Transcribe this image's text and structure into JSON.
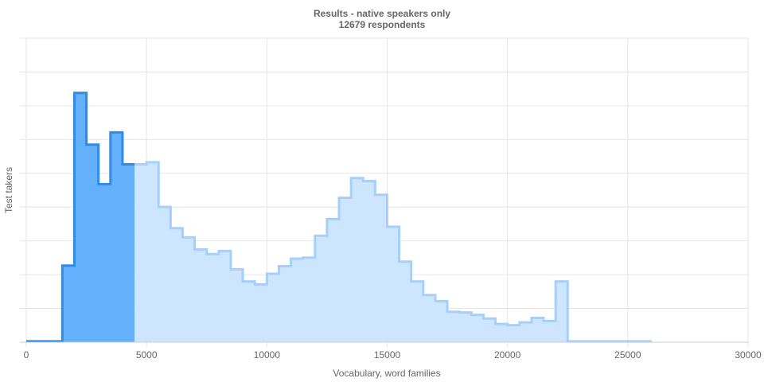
{
  "chart_data": {
    "type": "area",
    "title": [
      "Results - native speakers only",
      "12679 respondents"
    ],
    "xlabel": "Vocabulary, word families",
    "ylabel": "Test takers",
    "xlim": [
      0,
      30000
    ],
    "ylim": [
      0,
      100
    ],
    "grid": true,
    "legend": "none",
    "xticks": [
      0,
      5000,
      10000,
      15000,
      20000,
      25000,
      30000
    ],
    "bin_width": 500,
    "highlight_max_x": 4500,
    "colors": {
      "highlight_fill": "#64b0fc",
      "highlight_stroke": "#2e8ce8",
      "base_fill": "#cde5fe",
      "base_stroke": "#a6d0fa",
      "grid": "#e6e6e6",
      "axis": "#cccccc",
      "text": "#666666"
    },
    "series": [
      {
        "x": [
          250,
          750,
          1250,
          1750,
          2250,
          2750,
          3250,
          3750,
          4250,
          4750,
          5250,
          5750,
          6250,
          6750,
          7250,
          7750,
          8250,
          8750,
          9250,
          9750,
          10250,
          10750,
          11250,
          11750,
          12250,
          12750,
          13250,
          13750,
          14250,
          14750,
          15250,
          15750,
          16250,
          16750,
          17250,
          17750,
          18250,
          18750,
          19250,
          19750,
          20250,
          20750,
          21250,
          21750,
          22250,
          22750,
          23250,
          23750,
          24250,
          24750,
          25250,
          25750
        ],
        "values": [
          0.3,
          0.3,
          0.3,
          25.2,
          82.0,
          65.0,
          52.0,
          69.0,
          58.5,
          58.5,
          59.2,
          44.5,
          37.5,
          34.5,
          30.5,
          29.0,
          30.0,
          24.0,
          20.0,
          19.0,
          22.5,
          25.0,
          27.5,
          27.8,
          35.0,
          40.5,
          47.5,
          54.0,
          53.0,
          48.5,
          38.0,
          26.5,
          20.0,
          15.5,
          13.5,
          10.0,
          9.8,
          9.0,
          7.8,
          6.0,
          5.6,
          6.5,
          8.0,
          7.0,
          20.0,
          0.3,
          0.3,
          0.3,
          0.3,
          0.3,
          0.3,
          0.3
        ]
      }
    ]
  }
}
